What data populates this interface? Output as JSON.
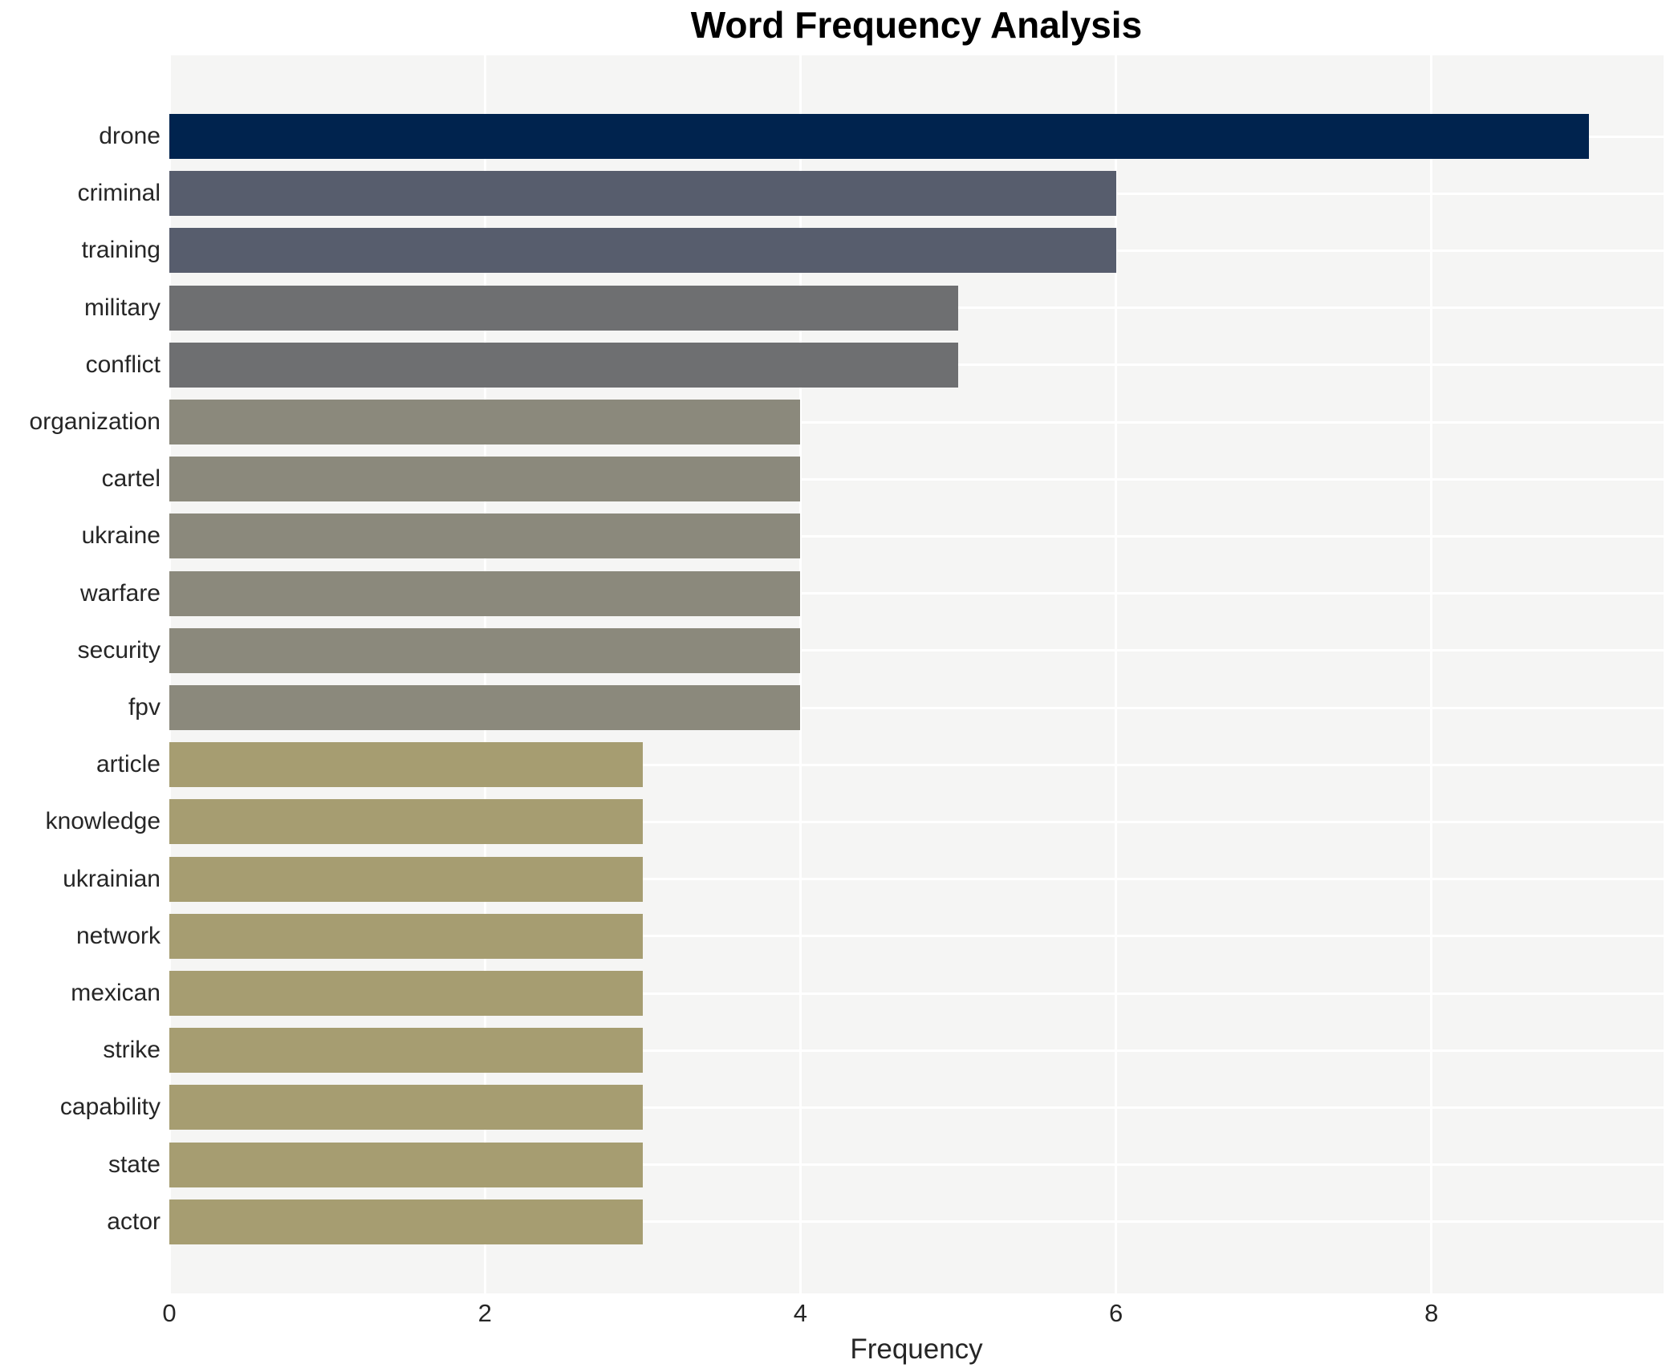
{
  "chart_data": {
    "type": "bar",
    "orientation": "horizontal",
    "title": "Word Frequency Analysis",
    "xlabel": "Frequency",
    "ylabel": "",
    "categories": [
      "drone",
      "criminal",
      "training",
      "military",
      "conflict",
      "organization",
      "cartel",
      "ukraine",
      "warfare",
      "security",
      "fpv",
      "article",
      "knowledge",
      "ukrainian",
      "network",
      "mexican",
      "strike",
      "capability",
      "state",
      "actor"
    ],
    "values": [
      9,
      6,
      6,
      5,
      5,
      4,
      4,
      4,
      4,
      4,
      4,
      3,
      3,
      3,
      3,
      3,
      3,
      3,
      3,
      3
    ],
    "bar_colors": [
      "#00234e",
      "#575d6d",
      "#575d6d",
      "#6e6f71",
      "#6e6f71",
      "#8b897c",
      "#8b897c",
      "#8b897c",
      "#8b897c",
      "#8b897c",
      "#8b897c",
      "#a69d71",
      "#a69d71",
      "#a69d71",
      "#a69d71",
      "#a69d71",
      "#a69d71",
      "#a69d71",
      "#a69d71",
      "#a69d71"
    ],
    "xticks": [
      0,
      2,
      4,
      6,
      8
    ],
    "xlim": [
      0,
      9.47
    ],
    "legend": "none",
    "grid": "white major gridlines on gray panel",
    "panel_bg": "#f5f5f4",
    "figure_bg": "#ffffff",
    "gridline_color": "#ffffff",
    "text_color": "#262626",
    "title_color": "#000000"
  }
}
